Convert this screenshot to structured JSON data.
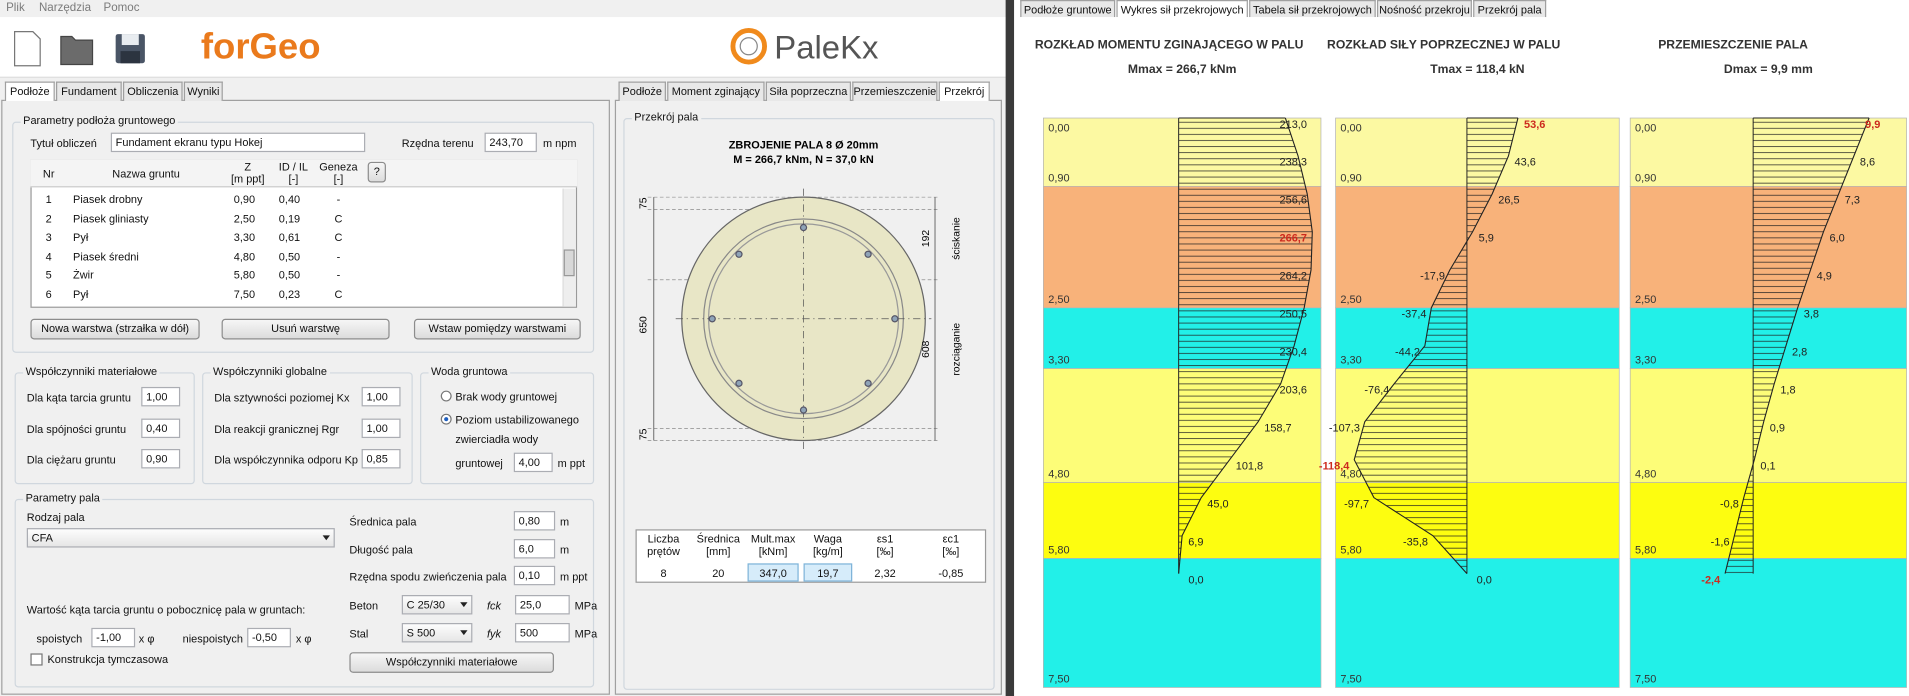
{
  "menu": [
    "Plik",
    "Narzędzia",
    "Pomoc"
  ],
  "logos": {
    "forgeo": "forGeo",
    "palekx": "PaleKx"
  },
  "left_tabs": [
    "Podłoże",
    "Fundament",
    "Obliczenia",
    "Wyniki"
  ],
  "soil": {
    "legend": "Parametry podłoża gruntowego",
    "title_label": "Tytuł obliczeń",
    "title_value": "Fundament ekranu typu Hokej",
    "terrain_label": "Rzędna terenu",
    "terrain_value": "243,70",
    "terrain_unit": "m npm",
    "table": {
      "headers": [
        [
          "Nr"
        ],
        [
          "Nazwa gruntu"
        ],
        [
          "Z",
          "[m ppt]"
        ],
        [
          "ID / IL",
          "[-]"
        ],
        [
          "Geneza",
          "[-]"
        ]
      ],
      "help": "?",
      "rows": [
        [
          "1",
          "Piasek drobny",
          "0,90",
          "0,40",
          "-"
        ],
        [
          "2",
          "Piasek gliniasty",
          "2,50",
          "0,19",
          "C"
        ],
        [
          "3",
          "Pył",
          "3,30",
          "0,61",
          "C"
        ],
        [
          "4",
          "Piasek średni",
          "4,80",
          "0,50",
          "-"
        ],
        [
          "5",
          "Żwir",
          "5,80",
          "0,50",
          "-"
        ],
        [
          "6",
          "Pył",
          "7,50",
          "0,23",
          "C"
        ]
      ]
    },
    "buttons": [
      "Nowa warstwa (strzałka w dół)",
      "Usuń warstwę",
      "Wstaw pomiędzy warstwami"
    ]
  },
  "material": {
    "legend": "Współczynniki materiałowe",
    "rows": [
      {
        "label": "Dla kąta tarcia gruntu",
        "value": "1,00"
      },
      {
        "label": "Dla spójności gruntu",
        "value": "0,40"
      },
      {
        "label": "Dla ciężaru gruntu",
        "value": "0,90"
      }
    ]
  },
  "global": {
    "legend": "Współczynniki globalne",
    "rows": [
      {
        "label": "Dla sztywności poziomej Kx",
        "value": "1,00"
      },
      {
        "label": "Dla reakcji granicznej Rgr",
        "value": "1,00"
      },
      {
        "label": "Dla współczynnika odporu Kp",
        "value": "0,85"
      }
    ]
  },
  "water": {
    "legend": "Woda gruntowa",
    "option_none": "Brak wody gruntowej",
    "option_level": [
      "Poziom ustabilizowanego",
      "zwierciadła wody"
    ],
    "level_label": "gruntowej",
    "level_value": "4,00",
    "level_unit": "m ppt"
  },
  "pile": {
    "legend": "Parametry pala",
    "type_label": "Rodzaj pala",
    "type_value": "CFA",
    "diameter_label": "Średnica pala",
    "diameter_value": "0,80",
    "diameter_unit": "m",
    "length_label": "Długość pala",
    "length_value": {
      "value": 6,
      "label": "6,0"
    },
    "length_unit": "m",
    "cap_label": "Rzędna spodu zwieńczenia pala",
    "cap_value": "0,10",
    "cap_unit": "m ppt",
    "concrete_label": "Beton",
    "concrete_value": "C 25/30",
    "fck_label": "fck",
    "fck_value": "25,0",
    "fck_unit": "MPa",
    "steel_label": "Stal",
    "steel_value": "S 500",
    "fyk_label": "fyk",
    "fyk_value": "500",
    "fyk_unit": "MPa",
    "friction_label": "Wartość kąta tarcia gruntu o pobocznicę pala w gruntach:",
    "cohesive_label": "spoistych",
    "cohesive_value": "-1,00",
    "cohesive_unit": "x φ",
    "noncohesive_label": "niespoistych",
    "noncohesive_value": "-0,50",
    "noncohesive_unit": "x φ",
    "temporary_label": "Konstrukcja tymczasowa",
    "button": "Współczynniki materiałowe"
  },
  "section": {
    "tabs": [
      "Podłoże",
      "Moment zginający",
      "Siła poprzeczna",
      "Przemieszczenie",
      "Przekrój"
    ],
    "legend": "Przekrój pala",
    "title": "ZBROJENIE PALA 8 Ø 20mm",
    "subtitle": "M = 266,7 kNm,  N = 37,0 kN",
    "dims_left": [
      "75",
      "650",
      "75"
    ],
    "dims_right": [
      {
        "value": "192",
        "label": "ściskanie"
      },
      {
        "value": "608",
        "label": "rozciąganie"
      }
    ],
    "table": {
      "headers": [
        [
          "Liczba",
          "prętów"
        ],
        [
          "Średnica",
          "[mm]"
        ],
        [
          "Mult.max",
          "[kNm]"
        ],
        [
          "Waga",
          "[kg/m]"
        ],
        [
          "εs1",
          "[‰]"
        ],
        [
          "εc1",
          "[‰]"
        ]
      ],
      "row": [
        "8",
        "20",
        "347,0",
        "19,7",
        "2,32",
        "-0,85"
      ]
    }
  },
  "results": {
    "tabs": [
      "Podłoże gruntowe",
      "Wykres sił przekrojowych",
      "Tabela sił przekrojowych",
      "Nośność przekroju",
      "Przekrój pala"
    ],
    "depth_ticks": [
      {
        "value": 0,
        "label": "0,00"
      },
      {
        "value": 0.9,
        "label": "0,90"
      },
      {
        "value": 2.5,
        "label": "2,50"
      },
      {
        "value": 3.3,
        "label": "3,30"
      },
      {
        "value": 4.8,
        "label": "4,80"
      },
      {
        "value": 5.8,
        "label": "5,80"
      },
      {
        "value": 7.5,
        "label": "7,50"
      }
    ],
    "layer_colors": [
      "#fcf9a2",
      "#f8b27a",
      "#22f0e8",
      "#fdfd78",
      "#fdfd10",
      "#22f0e8"
    ],
    "highlight_color": "#cc2a1e",
    "charts": [
      {
        "title": "ROZKŁAD MOMENTU ZGINAJĄCEGO W PALU",
        "max_label": "Mmax = 266,7 kNm",
        "values": [
          213.0,
          238.3,
          256.6,
          266.7,
          264.2,
          250.5,
          230.4,
          203.6,
          158.7,
          101.8,
          45.0,
          6.9,
          0.0
        ],
        "value_labels": [
          "213,0",
          "238,3",
          "256,6",
          "266,7",
          "264,2",
          "250,5",
          "230,4",
          "203,6",
          "158,7",
          "101,8",
          "45,0",
          "6,9",
          "0,0"
        ],
        "xlim": [
          -270,
          284
        ]
      },
      {
        "title": "ROZKŁAD SIŁY POPRZECZNEJ W PALU",
        "max_label": "Tmax = 118,4 kN",
        "values": [
          53.6,
          43.6,
          26.5,
          5.9,
          -17.9,
          -37.4,
          -44.2,
          -76.4,
          -107.3,
          -118.4,
          -97.7,
          -35.8,
          0.0
        ],
        "value_labels": [
          "53,6",
          "43,6",
          "26,5",
          "5,9",
          "-17,9",
          "-37,4",
          "-44,2",
          "-76,4",
          "-107,3",
          "-118,4",
          "-97,7",
          "-35,8",
          "0,0"
        ],
        "xlim": [
          -138,
          160
        ]
      },
      {
        "title": "PRZEMIESZCZENIE PALA",
        "max_label": "Dmax = 9,9 mm",
        "values": [
          9.9,
          8.6,
          7.3,
          6.0,
          4.9,
          3.8,
          2.8,
          1.8,
          0.9,
          0.1,
          -0.8,
          -1.6,
          -2.4
        ],
        "value_labels": [
          "9,9",
          "8,6",
          "7,3",
          "6,0",
          "4,9",
          "3,8",
          "2,8",
          "1,8",
          "0,9",
          "0,1",
          "-0,8",
          "-1,6",
          "-2,4"
        ],
        "xlim": [
          -10.5,
          13.1
        ]
      }
    ]
  }
}
